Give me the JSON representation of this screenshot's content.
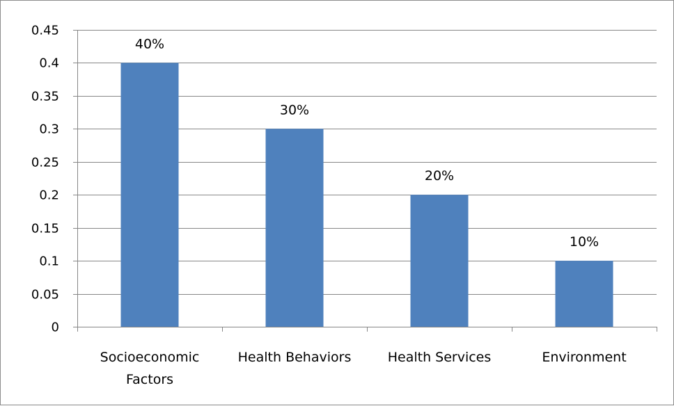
{
  "chart_data": {
    "type": "bar",
    "categories": [
      [
        "Socioeconomic",
        "Factors"
      ],
      [
        "Health Behaviors"
      ],
      [
        "Health Services"
      ],
      [
        "Environment"
      ]
    ],
    "values": [
      0.4,
      0.3,
      0.2,
      0.1
    ],
    "data_labels": [
      "40%",
      "30%",
      "20%",
      "10%"
    ],
    "y_ticks": [
      "0",
      "0.05",
      "0.1",
      "0.15",
      "0.2",
      "0.25",
      "0.3",
      "0.35",
      "0.4",
      "0.45"
    ],
    "ylim": [
      0,
      0.45
    ],
    "grid": true,
    "legend": "none",
    "bar_color": "#4f81bd",
    "gridline_color": "#868686",
    "title": "",
    "xlabel": "",
    "ylabel": ""
  }
}
